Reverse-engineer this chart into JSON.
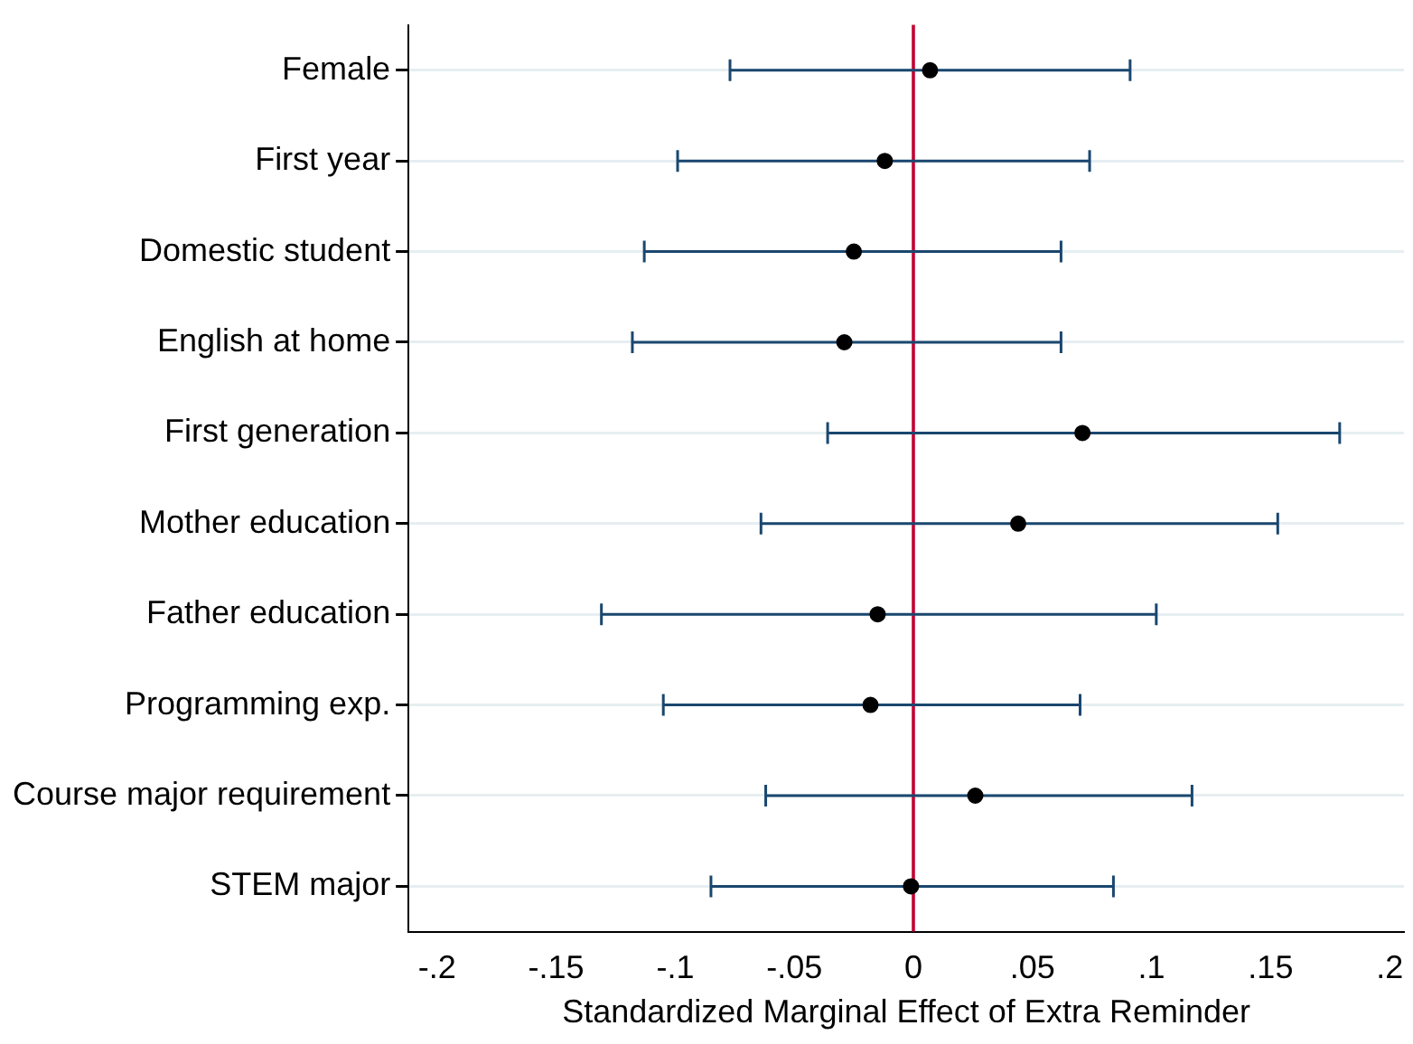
{
  "chart_data": {
    "type": "scatter",
    "orientation": "horizontal",
    "xlabel": "Standardized Marginal Effect of Extra Reminder",
    "categories": [
      "Female",
      "First year",
      "Domestic student",
      "English at home",
      "First generation",
      "Mother education",
      "Father education",
      "Programming exp.",
      "Course major requirement",
      "STEM major"
    ],
    "series": [
      {
        "color": "#000000",
        "values": [
          0.007,
          -0.012,
          -0.025,
          -0.029,
          0.071,
          0.044,
          -0.015,
          -0.018,
          0.026,
          -0.001
        ],
        "errors": [
          [
            -0.077,
            0.091
          ],
          [
            -0.099,
            0.074
          ],
          [
            -0.113,
            0.062
          ],
          [
            -0.118,
            0.062
          ],
          [
            -0.036,
            0.179
          ],
          [
            -0.064,
            0.153
          ],
          [
            -0.131,
            0.102
          ],
          [
            -0.105,
            0.07
          ],
          [
            -0.062,
            0.117
          ],
          [
            -0.085,
            0.084
          ]
        ]
      }
    ],
    "xlim": [
      -0.212,
      0.206
    ],
    "xticks": [
      {
        "value": -0.2,
        "label": "-.2"
      },
      {
        "value": -0.15,
        "label": "-.15"
      },
      {
        "value": -0.1,
        "label": "-.1"
      },
      {
        "value": -0.05,
        "label": "-.05"
      },
      {
        "value": 0,
        "label": "0"
      },
      {
        "value": 0.05,
        "label": ".05"
      },
      {
        "value": 0.1,
        "label": ".1"
      },
      {
        "value": 0.15,
        "label": ".15"
      },
      {
        "value": 0.2,
        "label": ".2"
      }
    ],
    "ref_lines": [
      {
        "axis": "x",
        "value": 0,
        "color": "#c10534"
      }
    ],
    "grid": "y",
    "legend": false,
    "marker": "circle"
  }
}
